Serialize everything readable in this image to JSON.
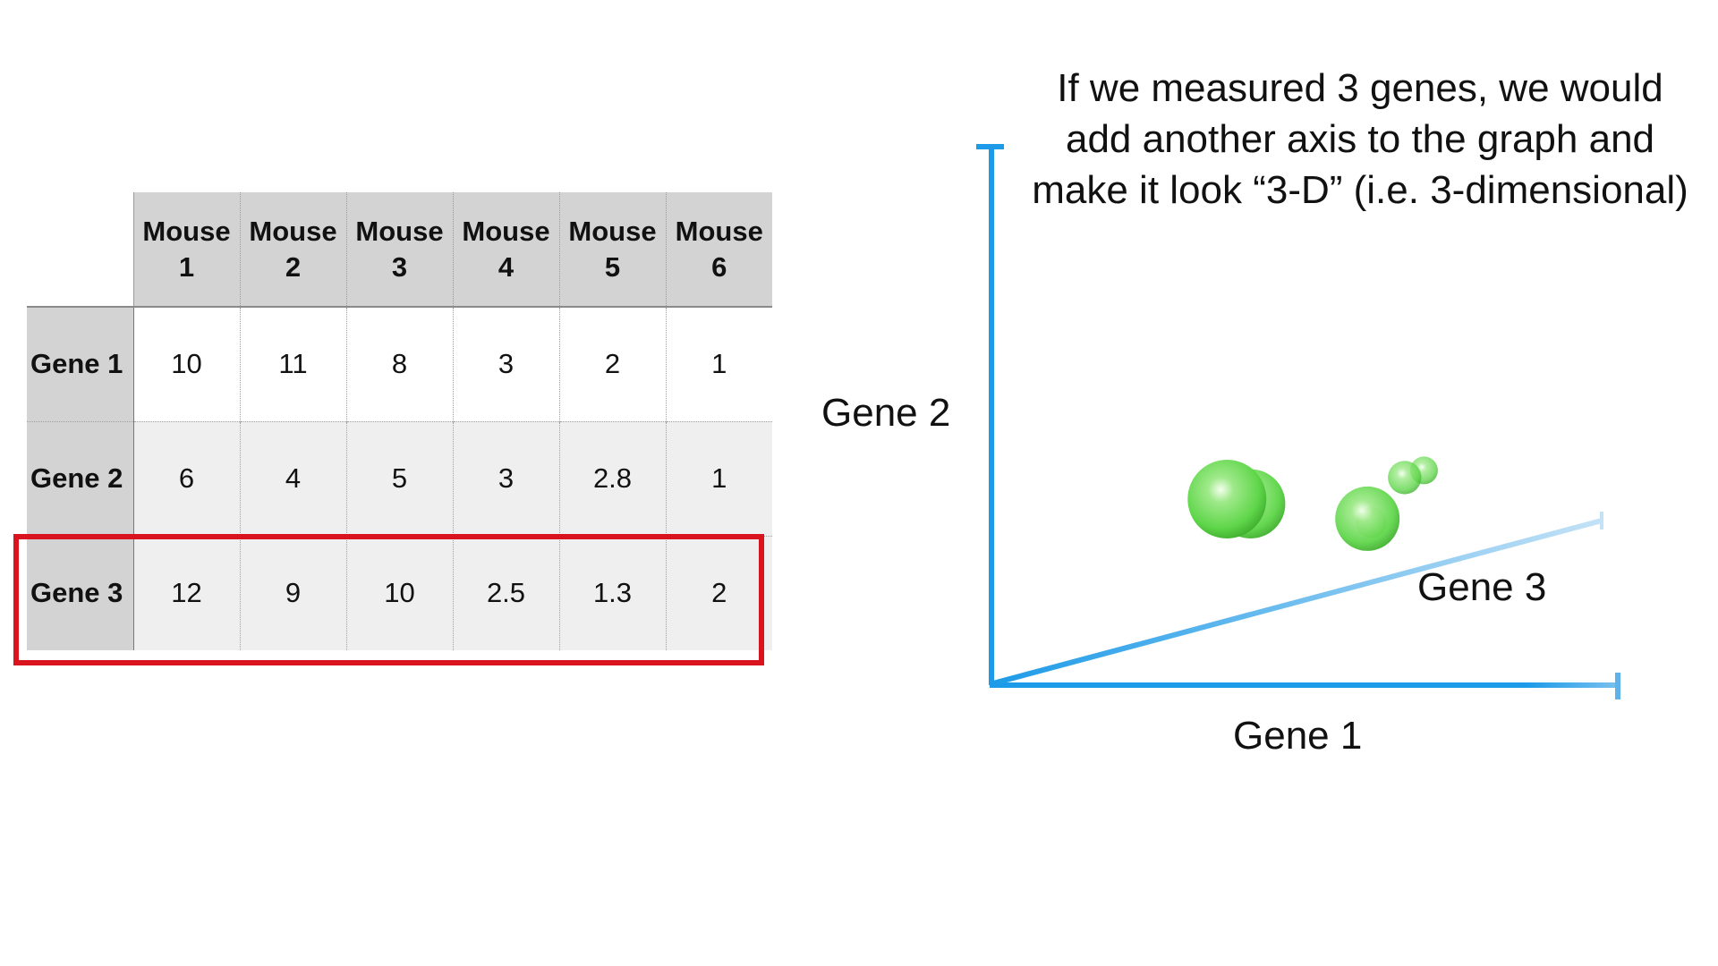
{
  "table": {
    "columns": [
      "Mouse\n1",
      "Mouse\n2",
      "Mouse\n3",
      "Mouse\n4",
      "Mouse\n5",
      "Mouse\n6"
    ],
    "rows": [
      {
        "label": "Gene 1",
        "values": [
          "10",
          "11",
          "8",
          "3",
          "2",
          "1"
        ]
      },
      {
        "label": "Gene 2",
        "values": [
          "6",
          "4",
          "5",
          "3",
          "2.8",
          "1"
        ]
      },
      {
        "label": "Gene 3",
        "values": [
          "12",
          "9",
          "10",
          "2.5",
          "1.3",
          "2"
        ]
      }
    ],
    "highlight_color": "#d9141f"
  },
  "explanation": "If we measured 3 genes, we would add another axis to the graph and make it look “3-D” (i.e. 3-dimensional)",
  "colors": {
    "axis": "#1e9be8",
    "point": "#5fd64a"
  },
  "chart_data": {
    "type": "scatter",
    "title": "",
    "xlabel": "Gene 1",
    "ylabel": "Gene 2",
    "zlabel": "Gene 3",
    "points": [
      {
        "gene1": 10,
        "gene2": 6,
        "gene3": 12
      },
      {
        "gene1": 11,
        "gene2": 4,
        "gene3": 9
      },
      {
        "gene1": 8,
        "gene2": 5,
        "gene3": 10
      },
      {
        "gene1": 3,
        "gene2": 3,
        "gene3": 2.5
      },
      {
        "gene1": 2,
        "gene2": 2.8,
        "gene3": 1.3
      },
      {
        "gene1": 1,
        "gene2": 1,
        "gene3": 2
      }
    ]
  }
}
